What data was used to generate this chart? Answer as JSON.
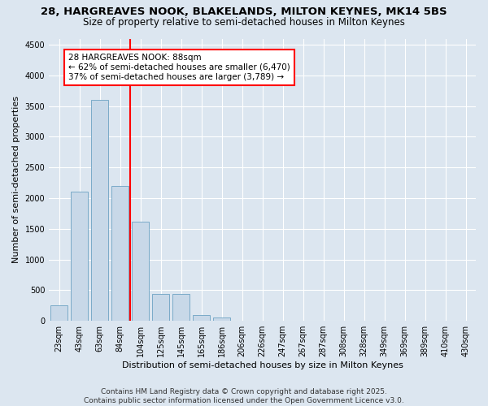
{
  "title_line1": "28, HARGREAVES NOOK, BLAKELANDS, MILTON KEYNES, MK14 5BS",
  "title_line2": "Size of property relative to semi-detached houses in Milton Keynes",
  "xlabel": "Distribution of semi-detached houses by size in Milton Keynes",
  "ylabel": "Number of semi-detached properties",
  "categories": [
    "23sqm",
    "43sqm",
    "63sqm",
    "84sqm",
    "104sqm",
    "125sqm",
    "145sqm",
    "165sqm",
    "186sqm",
    "206sqm",
    "226sqm",
    "247sqm",
    "267sqm",
    "287sqm",
    "308sqm",
    "328sqm",
    "349sqm",
    "369sqm",
    "389sqm",
    "410sqm",
    "430sqm"
  ],
  "values": [
    250,
    2100,
    3600,
    2200,
    1620,
    440,
    440,
    100,
    60,
    0,
    0,
    0,
    0,
    0,
    0,
    0,
    0,
    0,
    0,
    0,
    0
  ],
  "bar_color": "#c8d8e8",
  "bar_edge_color": "#7aaac8",
  "vline_index": 3,
  "vline_color": "red",
  "annotation_title": "28 HARGREAVES NOOK: 88sqm",
  "annotation_line1": "← 62% of semi-detached houses are smaller (6,470)",
  "annotation_line2": "37% of semi-detached houses are larger (3,789) →",
  "ylim": [
    0,
    4600
  ],
  "yticks": [
    0,
    500,
    1000,
    1500,
    2000,
    2500,
    3000,
    3500,
    4000,
    4500
  ],
  "footer_line1": "Contains HM Land Registry data © Crown copyright and database right 2025.",
  "footer_line2": "Contains public sector information licensed under the Open Government Licence v3.0.",
  "bg_color": "#dce6f0",
  "plot_bg_color": "#dce6f0",
  "title_fontsize": 9.5,
  "subtitle_fontsize": 8.5,
  "axis_label_fontsize": 8,
  "tick_fontsize": 7,
  "footer_fontsize": 6.5,
  "annotation_fontsize": 7.5
}
